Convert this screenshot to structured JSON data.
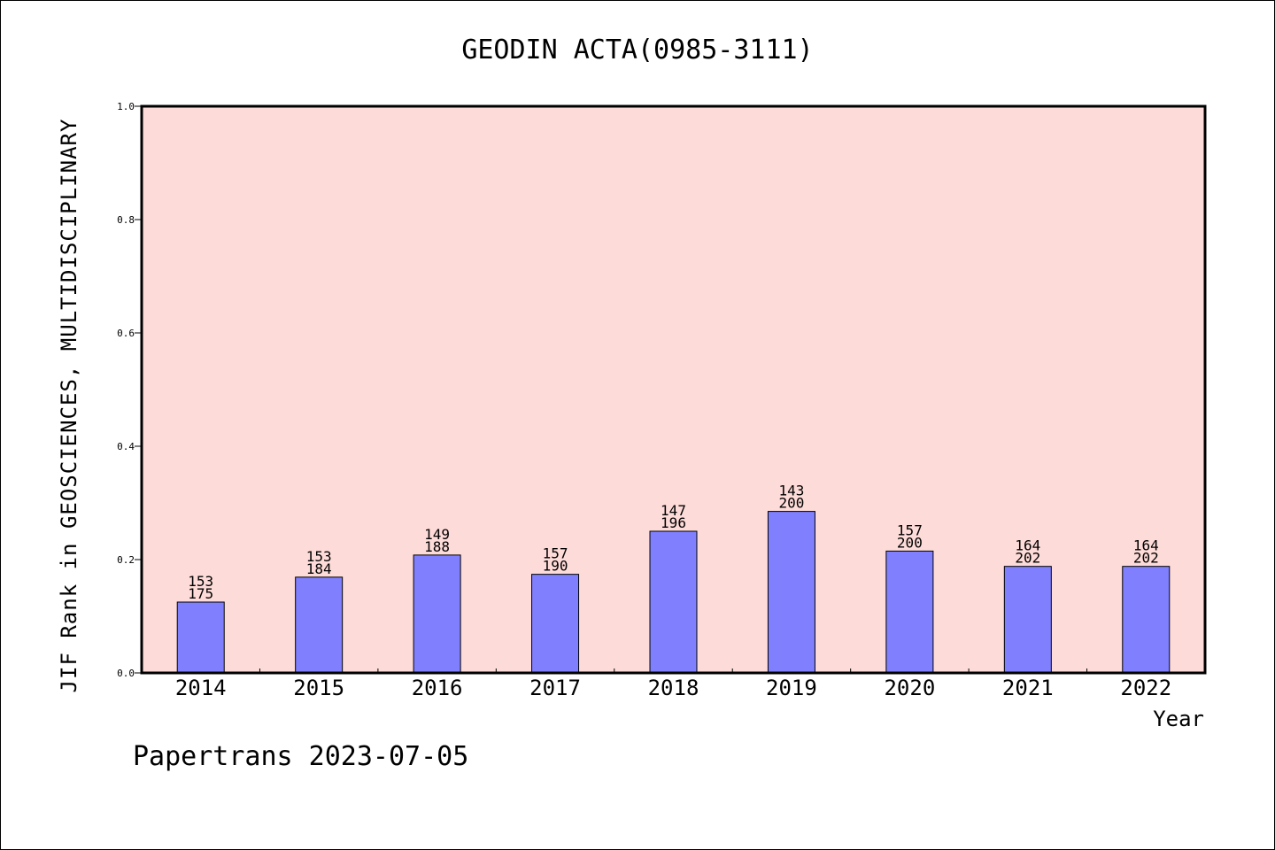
{
  "chart_data": {
    "type": "bar",
    "title": "GEODIN ACTA(0985-3111)",
    "xlabel": "Year",
    "ylabel": "JIF Rank in GEOSCIENCES, MULTIDISCIPLINARY",
    "categories": [
      "2014",
      "2015",
      "2016",
      "2017",
      "2018",
      "2019",
      "2020",
      "2021",
      "2022"
    ],
    "values": [
      0.125,
      0.169,
      0.208,
      0.174,
      0.25,
      0.285,
      0.215,
      0.188,
      0.188
    ],
    "rank": [
      "153",
      "153",
      "149",
      "157",
      "147",
      "143",
      "157",
      "164",
      "164"
    ],
    "total": [
      "175",
      "184",
      "188",
      "190",
      "196",
      "200",
      "200",
      "202",
      "202"
    ],
    "ylim": [
      0,
      1.0
    ],
    "yticks": [
      "0.0",
      "0.2",
      "0.4",
      "0.6",
      "0.8",
      "1.0"
    ],
    "grid": false,
    "colors": {
      "plot_background": "#fddbd8",
      "bar_fill": "#8080ff",
      "bar_edge": "#000000"
    }
  },
  "footer": "Papertrans 2023-07-05"
}
